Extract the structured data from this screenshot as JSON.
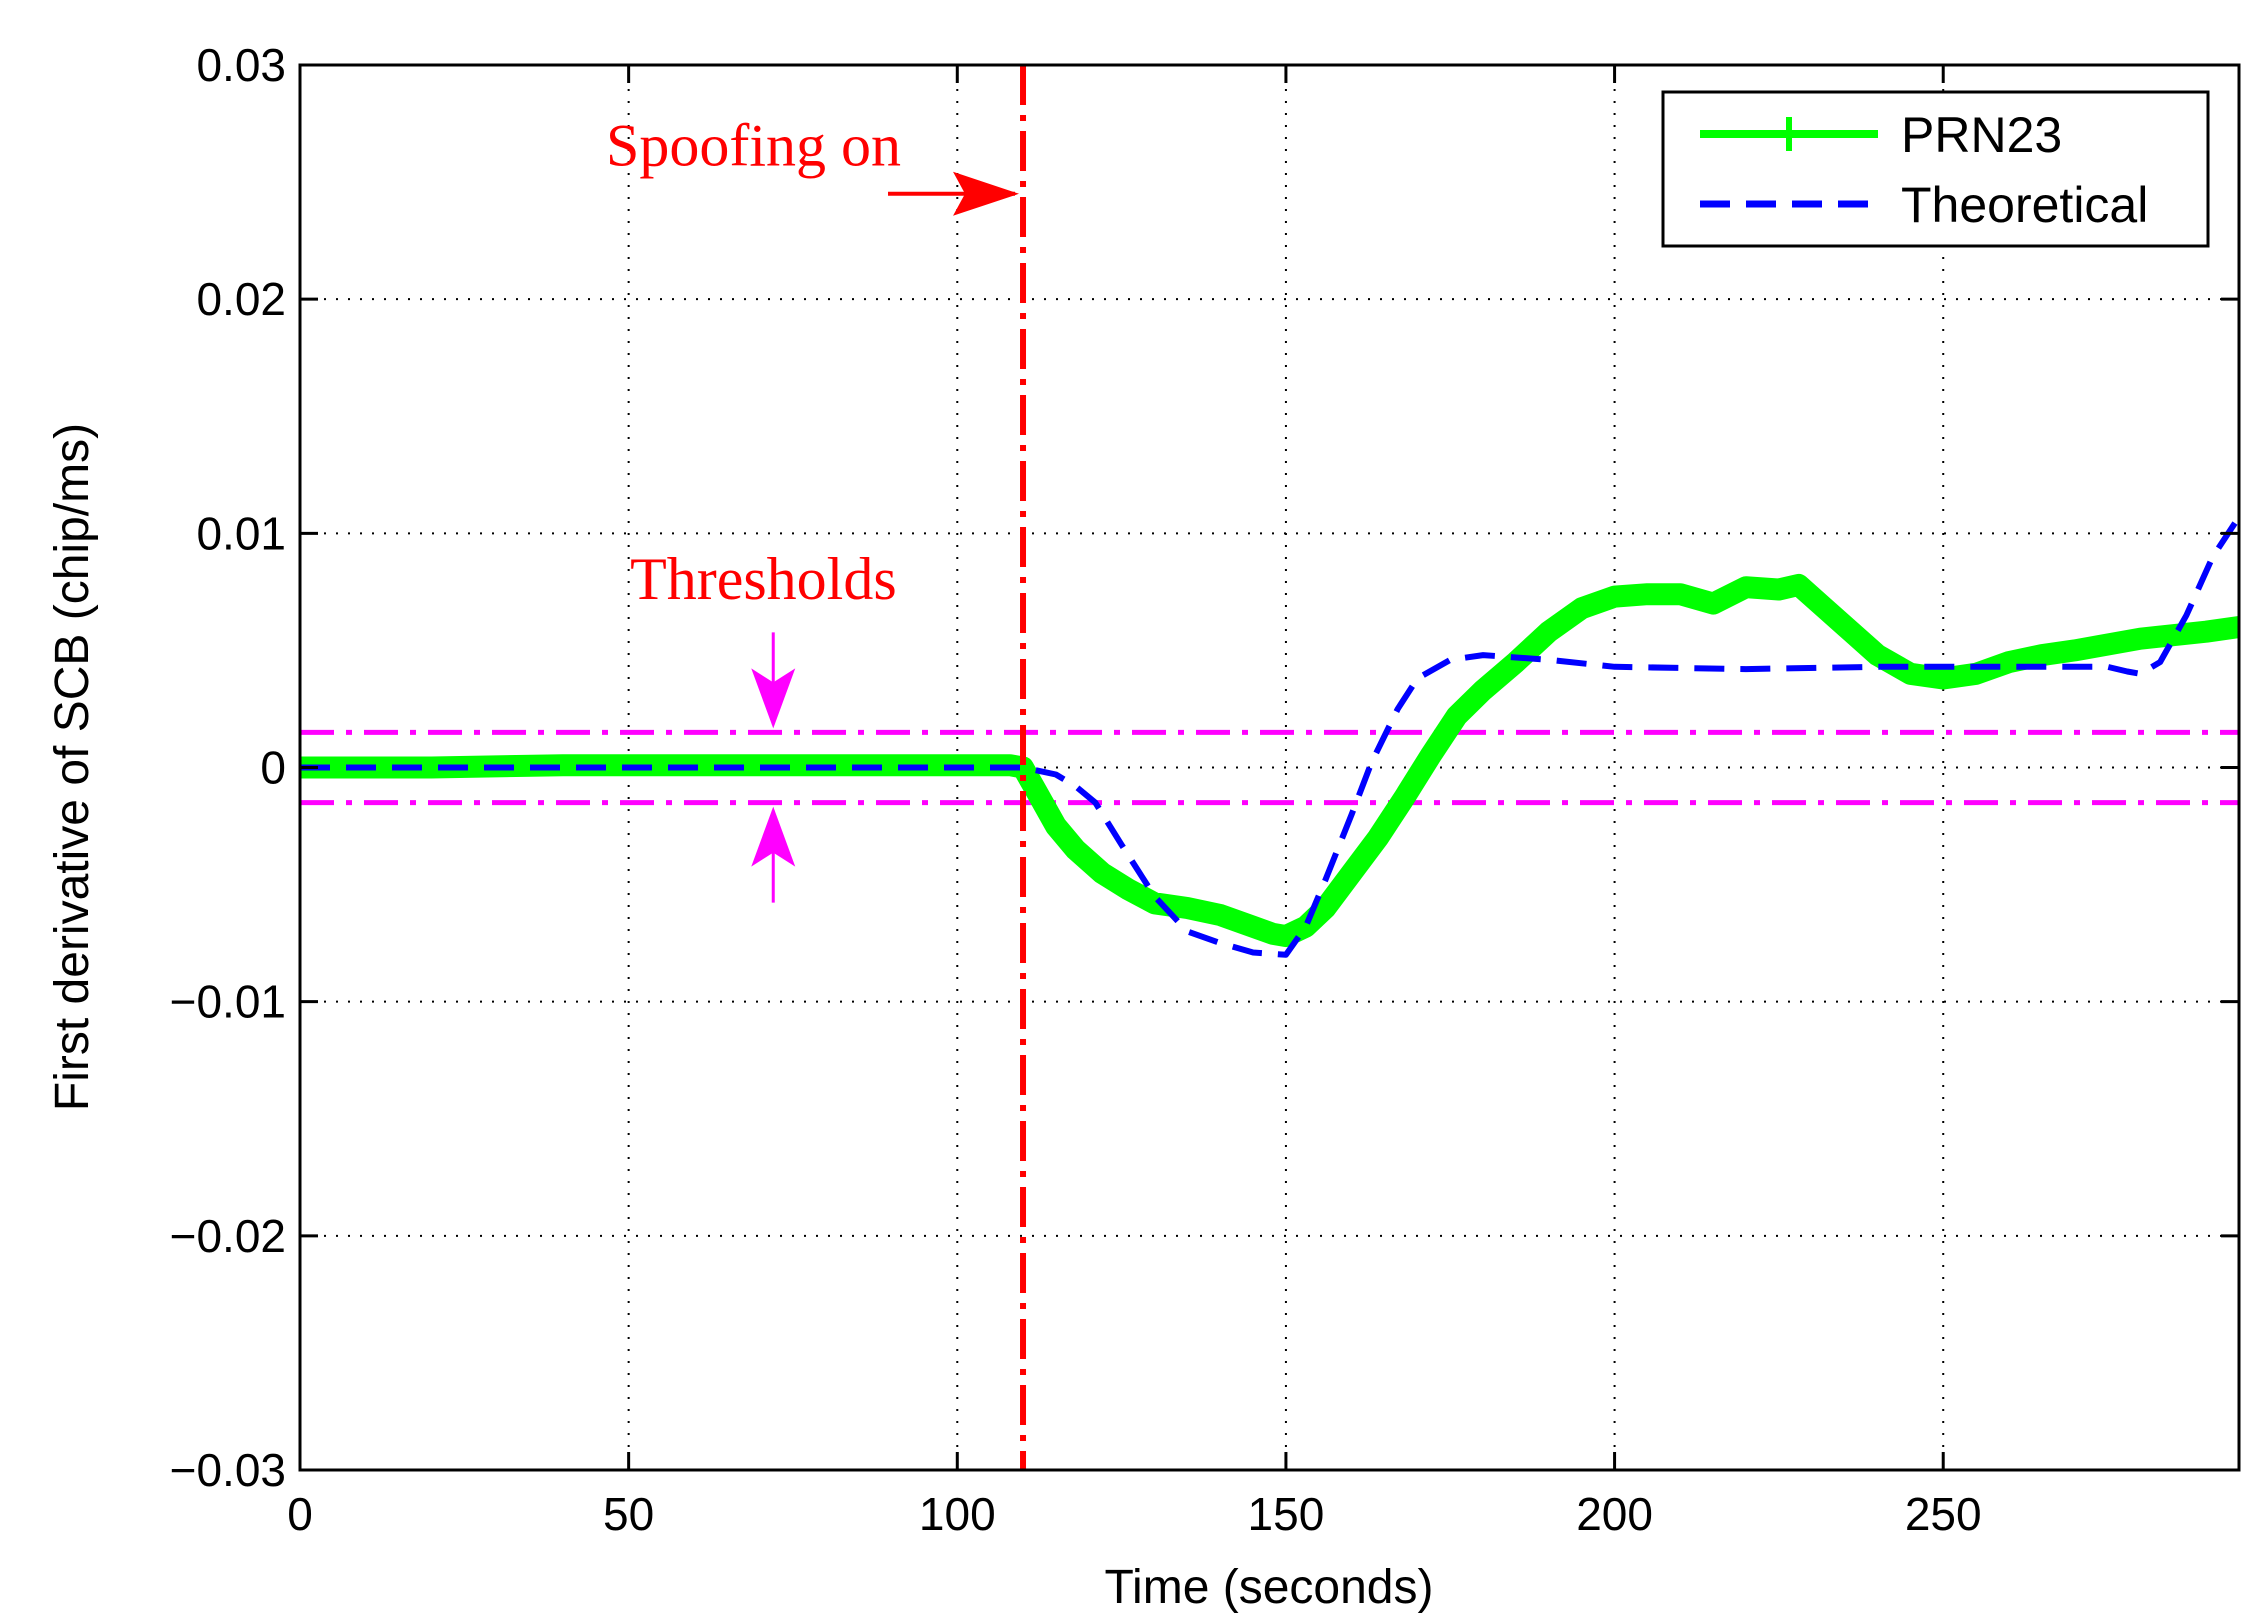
{
  "chart_data": {
    "type": "line",
    "title": "",
    "xlabel": "Time (seconds)",
    "ylabel": "First derivative of SCB (chip/ms)",
    "xlim": [
      0,
      295
    ],
    "ylim": [
      -0.03,
      0.03
    ],
    "xticks": [
      0,
      50,
      100,
      150,
      200,
      250
    ],
    "xtick_labels": [
      "0",
      "50",
      "100",
      "150",
      "200",
      "250"
    ],
    "yticks": [
      -0.03,
      -0.02,
      -0.01,
      0,
      0.01,
      0.02,
      0.03
    ],
    "ytick_labels": [
      "−0.03",
      "−0.02",
      "−0.01",
      "0",
      "0.01",
      "0.02",
      "0.03"
    ],
    "grid": true,
    "legend_position": "top-right",
    "series": [
      {
        "name": "PRN23",
        "color": "#00ff00",
        "style": "solid-thick",
        "x": [
          0,
          20,
          40,
          60,
          80,
          100,
          108,
          110,
          112,
          115,
          118,
          122,
          126,
          130,
          135,
          140,
          145,
          148,
          150,
          153,
          156,
          160,
          164,
          168,
          172,
          176,
          180,
          185,
          190,
          195,
          200,
          205,
          210,
          215,
          220,
          225,
          228,
          232,
          236,
          240,
          245,
          250,
          255,
          260,
          265,
          270,
          280,
          290,
          295
        ],
        "y": [
          0.0,
          0.0,
          0.0001,
          0.0001,
          0.0001,
          0.0001,
          0.0001,
          0.0,
          -0.001,
          -0.0025,
          -0.0035,
          -0.0045,
          -0.0052,
          -0.0058,
          -0.006,
          -0.0063,
          -0.0068,
          -0.0071,
          -0.0072,
          -0.0068,
          -0.006,
          -0.0045,
          -0.003,
          -0.0013,
          0.0005,
          0.0022,
          0.0033,
          0.0045,
          0.0058,
          0.0068,
          0.0073,
          0.0074,
          0.0074,
          0.007,
          0.0077,
          0.0076,
          0.0078,
          0.0068,
          0.0058,
          0.0048,
          0.004,
          0.0038,
          0.004,
          0.0045,
          0.0048,
          0.005,
          0.0055,
          0.0058,
          0.006
        ]
      },
      {
        "name": "Theoretical",
        "color": "#0000ff",
        "style": "dashed",
        "x": [
          0,
          50,
          100,
          110,
          115,
          118,
          121,
          125,
          130,
          135,
          140,
          145,
          150,
          153,
          156,
          160,
          163,
          167,
          170,
          175,
          180,
          190,
          200,
          220,
          240,
          260,
          275,
          278,
          280,
          283,
          287,
          291,
          295
        ],
        "y": [
          0.0,
          0.0,
          0.0,
          0.0,
          -0.0003,
          -0.0008,
          -0.0015,
          -0.0033,
          -0.0055,
          -0.007,
          -0.0075,
          -0.0079,
          -0.008,
          -0.0068,
          -0.0048,
          -0.002,
          0.0002,
          0.0025,
          0.0038,
          0.0046,
          0.0048,
          0.0046,
          0.0043,
          0.0042,
          0.0043,
          0.0043,
          0.0043,
          0.0041,
          0.004,
          0.0045,
          0.0065,
          0.009,
          0.0107
        ]
      }
    ],
    "reference_lines": {
      "spoofing_x": 110,
      "spoofing_color": "#ff0000",
      "threshold_upper": 0.0015,
      "threshold_lower": -0.0015,
      "threshold_color": "#ff00ff"
    },
    "annotations": {
      "spoofing_text": "Spoofing on",
      "thresholds_text": "Thresholds",
      "arrow_x": 72,
      "spoofing_arrow_y": 0.0245
    }
  }
}
